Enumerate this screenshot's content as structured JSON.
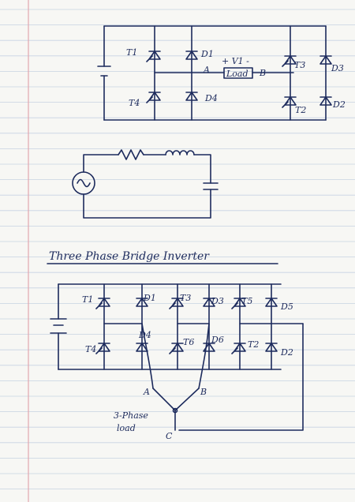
{
  "diagram1": {
    "labels": {
      "T1": "T1",
      "D1": "D1",
      "T4": "T4",
      "D4": "D4",
      "T3": "T3",
      "D3": "D3",
      "T2": "T2",
      "D2": "D2",
      "A": "A",
      "B": "B",
      "load": "Load",
      "v1": "+ V1 -"
    }
  },
  "diagram2": {},
  "diagram3": {
    "title": "Three Phase Bridge Inverter",
    "labels": {
      "T1": "T1",
      "D1": "D1",
      "T3": "T3",
      "D3": "D3",
      "T5": "T5",
      "D5": "D5",
      "T4": "T4",
      "D4": "D4",
      "T6": "T6",
      "D6": "D6",
      "T2": "T2",
      "D2": "D2",
      "A": "A",
      "B": "B",
      "C": "C",
      "load1": "3-Phase",
      "load2": "load"
    }
  },
  "colors": {
    "ink": "#1c2a5c",
    "paper": "#f7f7f4",
    "rule": "#c7d3e2",
    "margin": "#e2a6ae"
  }
}
